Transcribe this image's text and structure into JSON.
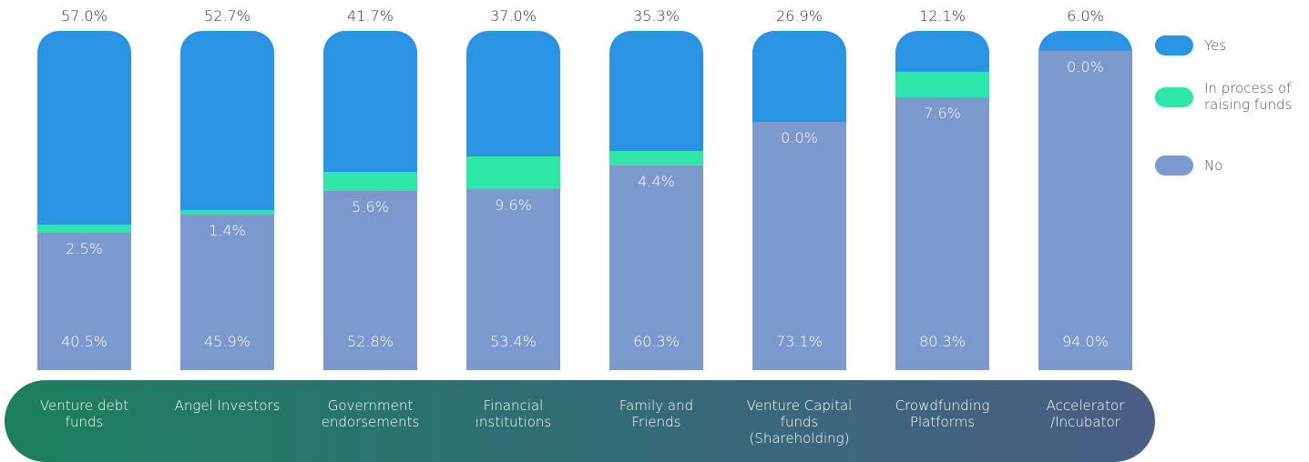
{
  "chart_data": {
    "type": "stacked-bar",
    "categories": [
      "Venture debt\nfunds",
      "Angel Investors",
      "Government\nendorsements",
      "Financial\ninstitutions",
      "Family and\nFriends",
      "Venture Capital funds\n(Shareholding)",
      "Crowdfunding\nPlatforms",
      "Accelerator\n/Incubator"
    ],
    "series": [
      {
        "name": "Yes",
        "color": "#2b93e3",
        "values": [
          57.0,
          52.7,
          41.7,
          37.0,
          35.3,
          26.9,
          12.1,
          6.0
        ],
        "value_labels": [
          "57.0%",
          "52.7%",
          "41.7%",
          "37.0%",
          "35.3%",
          "26.9%",
          "12.1%",
          "6.0%"
        ]
      },
      {
        "name": "In process of\nraising funds",
        "color": "#2de8a8",
        "values": [
          2.5,
          1.4,
          5.6,
          9.6,
          4.4,
          0.0,
          7.6,
          0.0
        ],
        "value_labels": [
          "2.5%",
          "1.4%",
          "5.6%",
          "9.6%",
          "4.4%",
          "0.0%",
          "7.6%",
          "0.0%"
        ]
      },
      {
        "name": "No",
        "color": "#7b99cd",
        "values": [
          40.5,
          45.9,
          52.8,
          53.4,
          60.3,
          73.1,
          80.3,
          94.0
        ],
        "value_labels": [
          "40.5%",
          "45.9%",
          "52.8%",
          "53.4%",
          "60.3%",
          "73.1%",
          "80.3%",
          "94.0%"
        ]
      }
    ]
  }
}
